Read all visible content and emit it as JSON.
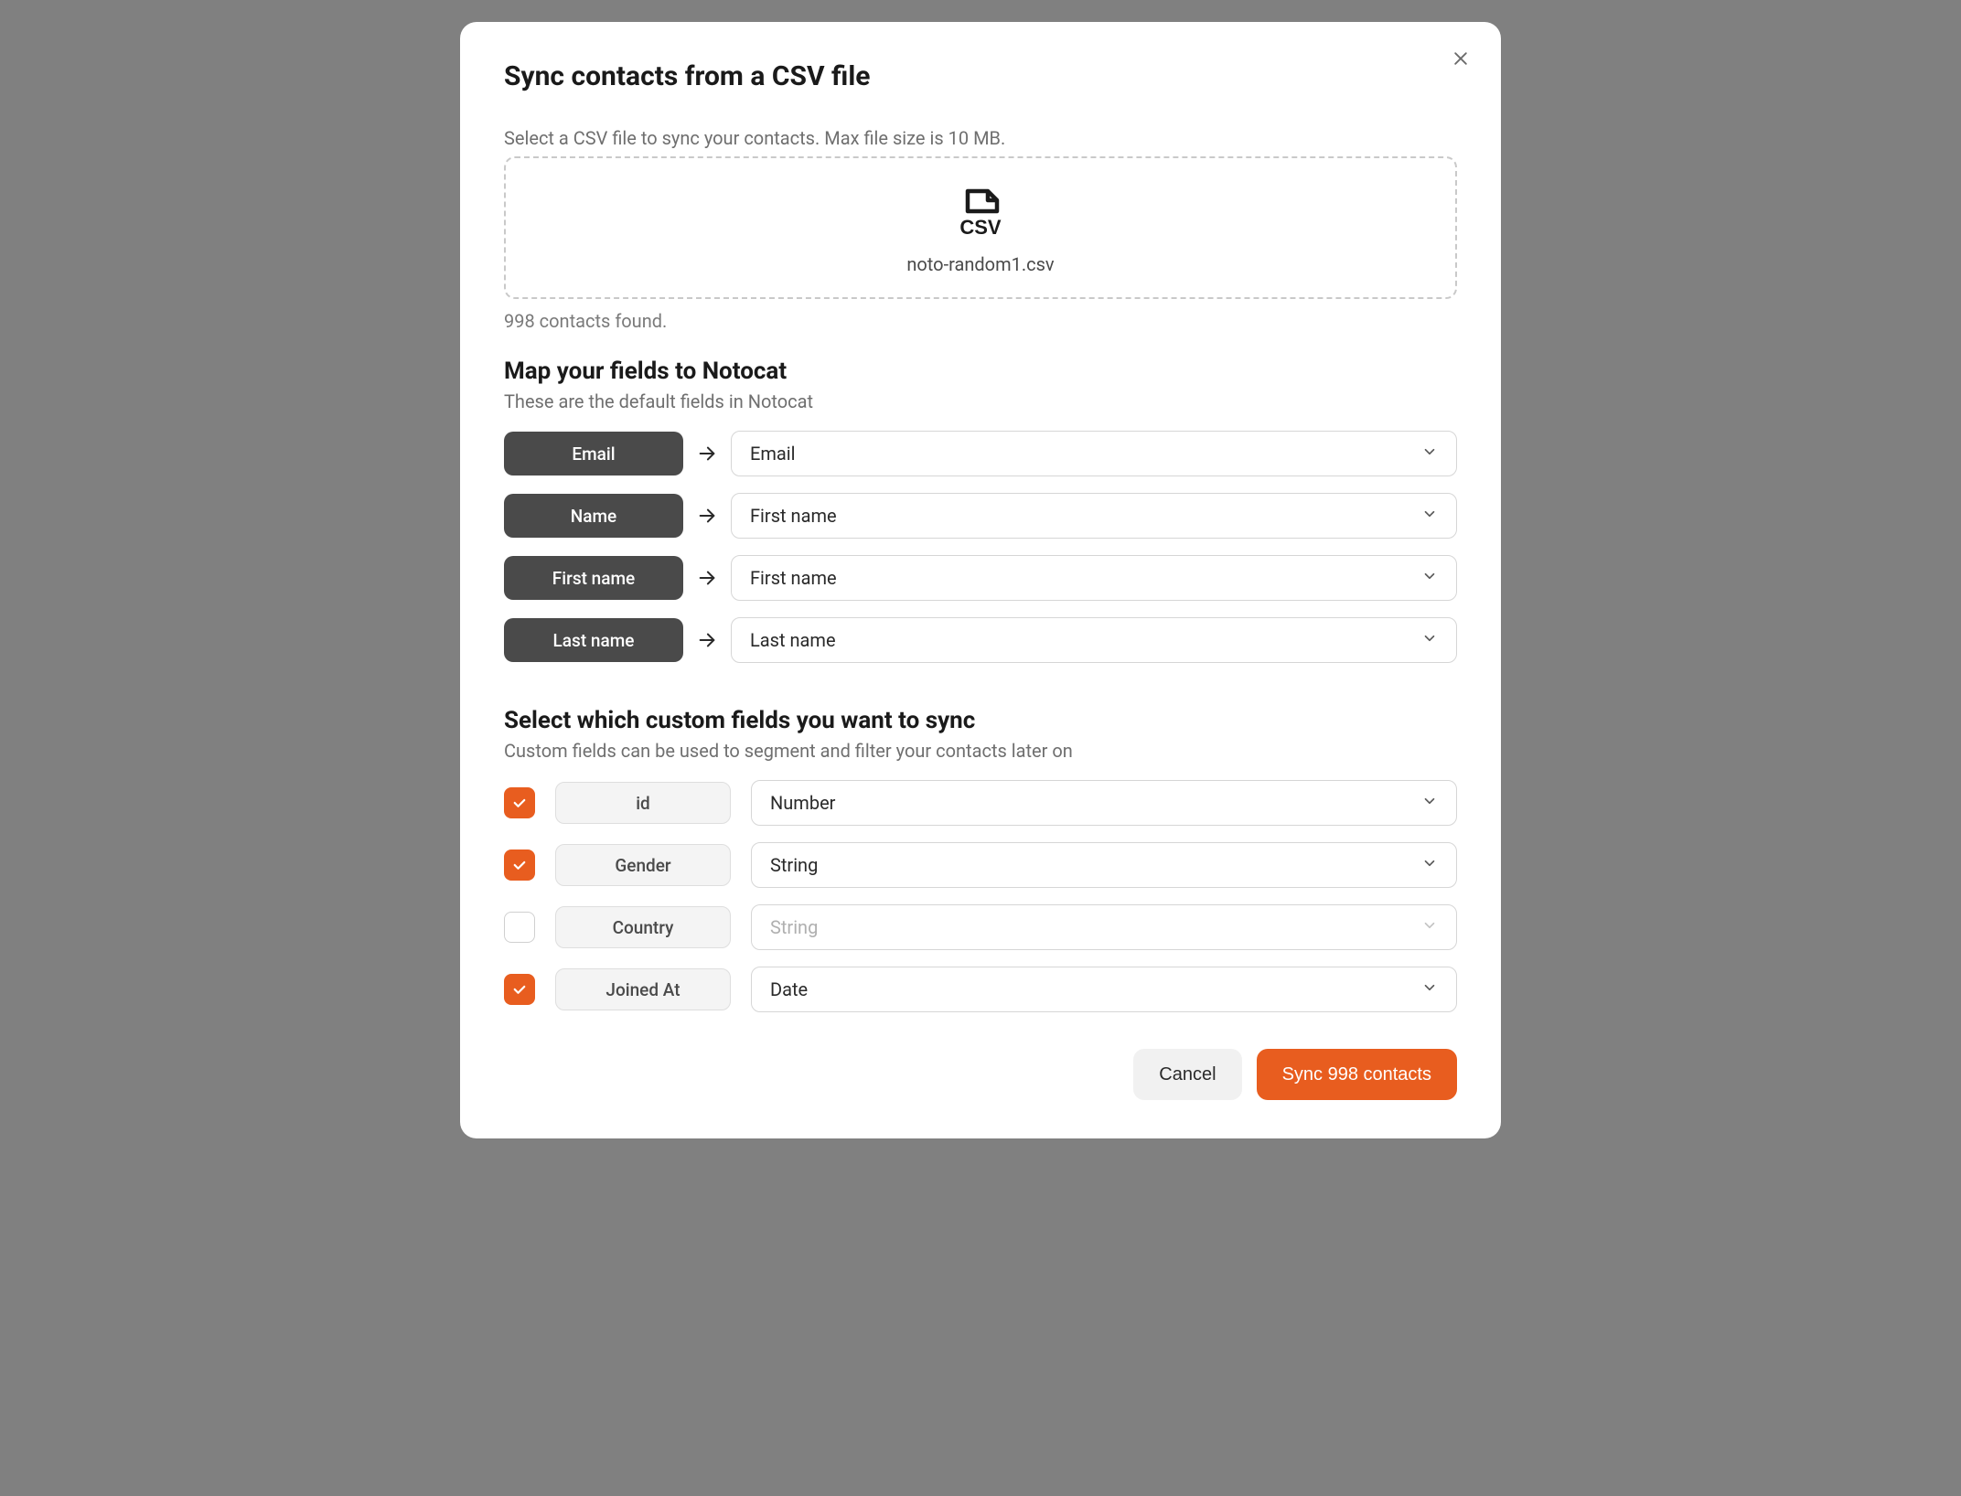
{
  "dialog": {
    "title": "Sync contacts from a CSV file",
    "instruction": "Select a CSV file to sync your contacts. Max file size is 10 MB.",
    "filename": "noto-random1.csv",
    "contacts_found": "998 contacts found."
  },
  "mapping": {
    "title": "Map your fields to Notocat",
    "subtitle": "These are the default fields in Notocat",
    "rows": [
      {
        "source": "Email",
        "target": "Email"
      },
      {
        "source": "Name",
        "target": "First name"
      },
      {
        "source": "First name",
        "target": "First name"
      },
      {
        "source": "Last name",
        "target": "Last name"
      }
    ]
  },
  "custom": {
    "title": "Select which custom fields you want to sync",
    "subtitle": "Custom fields can be used to segment and filter your contacts later on",
    "rows": [
      {
        "checked": true,
        "name": "id",
        "type": "Number"
      },
      {
        "checked": true,
        "name": "Gender",
        "type": "String"
      },
      {
        "checked": false,
        "name": "Country",
        "type": "String"
      },
      {
        "checked": true,
        "name": "Joined At",
        "type": "Date"
      }
    ]
  },
  "footer": {
    "cancel": "Cancel",
    "submit": "Sync 998 contacts"
  },
  "colors": {
    "accent": "#e85d1f",
    "pill_dark": "#4a4a4a",
    "border": "#d6d6d6",
    "bg": "#ffffff",
    "page_bg": "#808080"
  }
}
